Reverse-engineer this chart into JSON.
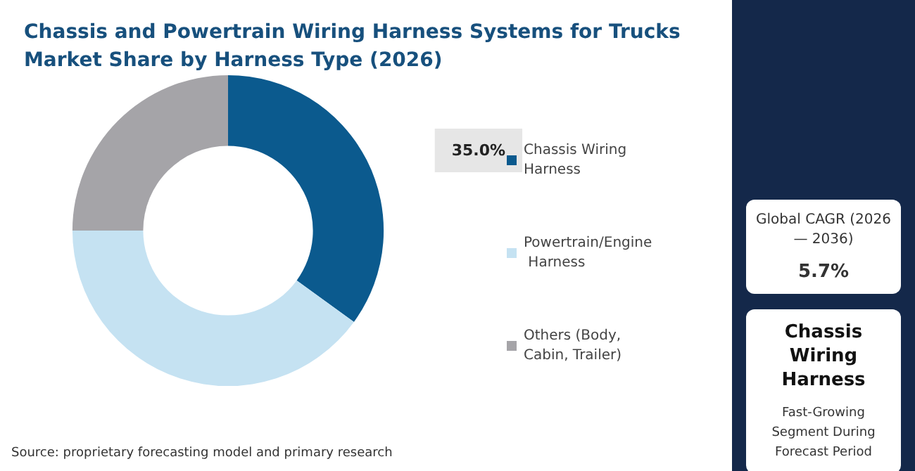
{
  "chart_data": [
    {
      "type": "donut",
      "title": "Chassis and Powertrain Wiring Harness Systems for Trucks Market Share by Harness Type (2026)",
      "categories": [
        "Chassis Wiring Harness",
        "Powertrain/Engine Harness",
        "Others (Body, Cabin, Trailer)"
      ],
      "values": [
        35,
        40,
        25
      ],
      "colors": [
        "#0b5a8e",
        "#c5e2f2",
        "#a5a4a8"
      ],
      "value_labels": [
        "35.0%",
        null,
        null
      ],
      "legend": "right",
      "annotations": [
        "Source: proprietary forecasting model and primary research"
      ]
    },
    {
      "type": "other",
      "annotations": [
        "Global CAGR (2026 — 2036)",
        "5.7%",
        "Chassis Wiring Harness",
        "Fast-Growing Segment During Forecast Period"
      ]
    }
  ]
}
